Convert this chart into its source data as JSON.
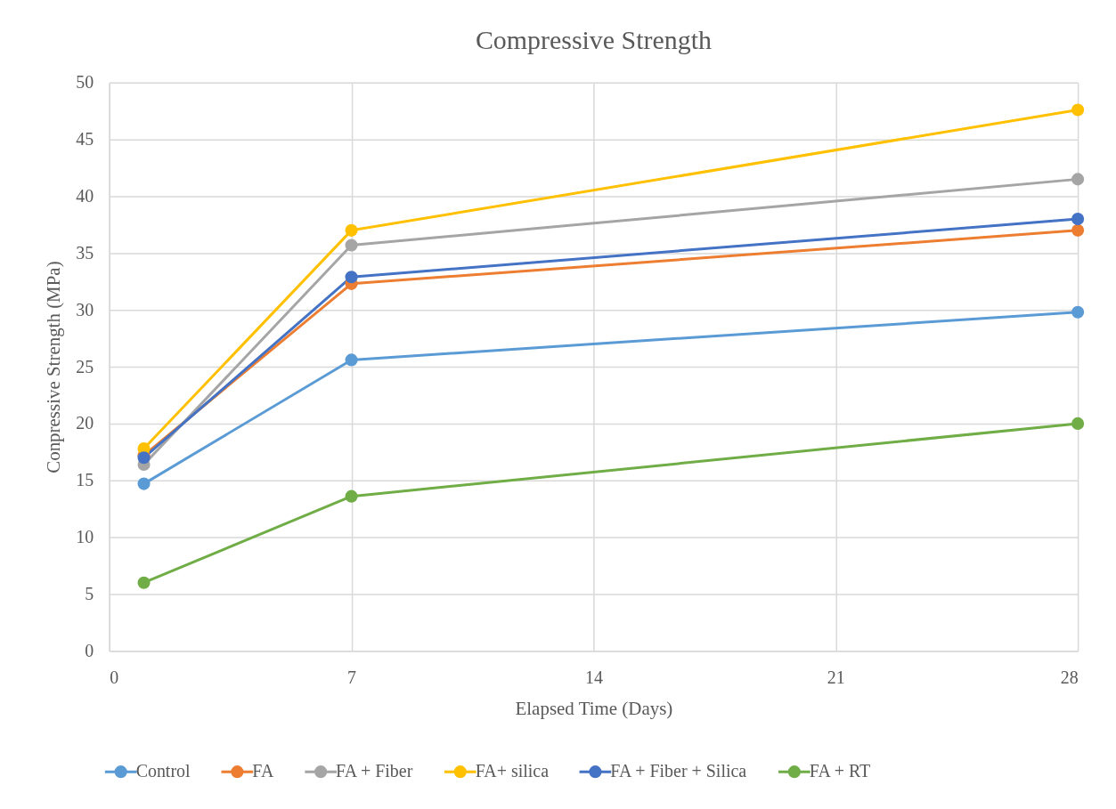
{
  "chart_data": {
    "type": "line",
    "title": "Compressive Strength",
    "xlabel": "Elapsed Time (Days)",
    "ylabel": "Conpressive Strength (MPa)",
    "x": [
      1,
      7,
      28
    ],
    "xlim": [
      0,
      28
    ],
    "xticks": [
      0,
      7,
      14,
      21,
      28
    ],
    "ylim": [
      0,
      50
    ],
    "yticks": [
      0,
      5,
      10,
      15,
      20,
      25,
      30,
      35,
      40,
      45,
      50
    ],
    "grid": true,
    "legend": "bottom",
    "marker": "circle",
    "line_style": "solid",
    "series": [
      {
        "name": "Control",
        "color": "#5b9bd5",
        "values": [
          14.7,
          25.6,
          29.8
        ]
      },
      {
        "name": "FA",
        "color": "#ed7d31",
        "values": [
          17.2,
          32.3,
          37.0
        ]
      },
      {
        "name": "FA + Fiber",
        "color": "#a5a5a5",
        "values": [
          16.4,
          35.7,
          41.5
        ]
      },
      {
        "name": "FA+ silica",
        "color": "#ffc000",
        "values": [
          17.8,
          37.0,
          47.6
        ]
      },
      {
        "name": "FA + Fiber + Silica",
        "color": "#4472c4",
        "values": [
          17.0,
          32.9,
          38.0
        ]
      },
      {
        "name": "FA + RT",
        "color": "#70ad47",
        "values": [
          6.0,
          13.6,
          20.0
        ]
      }
    ]
  }
}
